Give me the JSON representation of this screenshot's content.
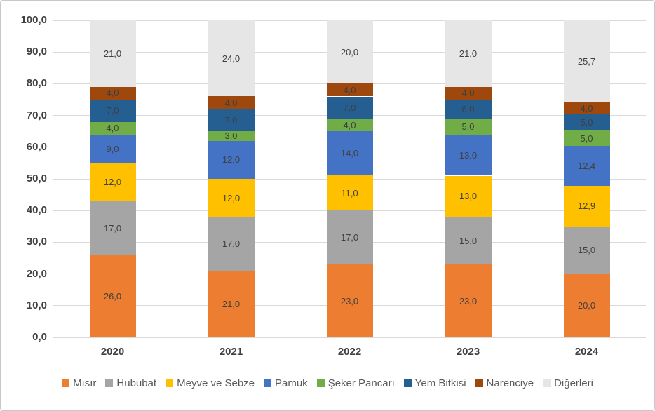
{
  "chart_data": {
    "type": "bar",
    "subtype": "stacked-column",
    "title": "",
    "xlabel": "",
    "ylabel": "",
    "categories": [
      "2020",
      "2021",
      "2022",
      "2023",
      "2024"
    ],
    "series": [
      {
        "name": "Mısır",
        "color": "#ED7D31",
        "values": [
          26,
          21,
          23,
          23,
          20
        ]
      },
      {
        "name": "Hububat",
        "color": "#A5A5A5",
        "values": [
          17,
          17,
          17,
          15,
          15
        ]
      },
      {
        "name": "Meyve ve Sebze",
        "color": "#FFC000",
        "values": [
          12,
          12,
          11,
          13,
          12.9
        ]
      },
      {
        "name": "Pamuk",
        "color": "#4472C4",
        "values": [
          9,
          12,
          14,
          13,
          12.4
        ]
      },
      {
        "name": "Şeker Pancarı",
        "color": "#70AD47",
        "values": [
          4,
          3,
          4,
          5,
          5
        ]
      },
      {
        "name": "Yem Bitkisi",
        "color": "#255E91",
        "values": [
          7,
          7,
          7,
          6,
          5
        ]
      },
      {
        "name": "Narenciye",
        "color": "#9E480E",
        "values": [
          4,
          4,
          4,
          4,
          4
        ]
      },
      {
        "name": "Diğerleri",
        "color": "#E7E6E6",
        "values": [
          21,
          24,
          20,
          21,
          25.7
        ]
      }
    ],
    "ylim": [
      0,
      100
    ],
    "ytick_step": 10,
    "decimals": 1,
    "decimal_separator": ",",
    "grid": true,
    "data_labels": true,
    "legend_position": "bottom"
  },
  "style_colors": {
    "gridline": "#D9D9D9",
    "axis_text": "#404040",
    "data_label_text": "#404040",
    "legend_text": "#595959",
    "frame_border": "#C9C9C9"
  }
}
